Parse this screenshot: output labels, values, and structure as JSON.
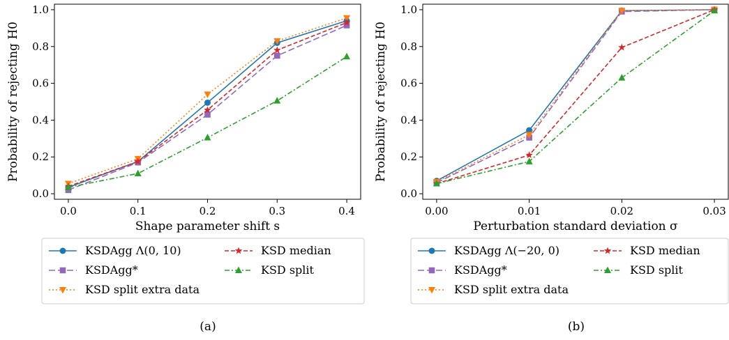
{
  "chart_data": [
    {
      "type": "line",
      "panel_label": "(a)",
      "xlabel": "Shape parameter shift s",
      "ylabel": "Probability of rejecting H0",
      "x": [
        0.0,
        0.1,
        0.2,
        0.3,
        0.4
      ],
      "x_tick_labels": [
        "0.0",
        "0.1",
        "0.2",
        "0.3",
        "0.4"
      ],
      "y_tick_labels": [
        "0.0",
        "0.2",
        "0.4",
        "0.6",
        "0.8",
        "1.0"
      ],
      "xlim": [
        -0.02,
        0.42
      ],
      "ylim": [
        -0.03,
        1.03
      ],
      "grid": false,
      "legend_position": "below",
      "series": [
        {
          "name": "KSDAgg Λ(0, 10)",
          "color": "#1f77b4",
          "marker": "circle",
          "dash": "solid",
          "values": [
            0.035,
            0.175,
            0.495,
            0.82,
            0.94
          ]
        },
        {
          "name": "KSDAgg*",
          "color": "#9467bd",
          "marker": "square",
          "dash": "longdash",
          "values": [
            0.02,
            0.17,
            0.43,
            0.75,
            0.915
          ]
        },
        {
          "name": "KSD split extra data",
          "color": "#ff7f0e",
          "marker": "triangle-down",
          "dash": "dotted",
          "values": [
            0.055,
            0.19,
            0.54,
            0.83,
            0.955
          ]
        },
        {
          "name": "KSD median",
          "color": "#d62728",
          "marker": "star",
          "dash": "dashed",
          "values": [
            0.04,
            0.175,
            0.455,
            0.78,
            0.93
          ]
        },
        {
          "name": "KSD split",
          "color": "#2ca02c",
          "marker": "triangle-up",
          "dash": "dashdot",
          "values": [
            0.035,
            0.11,
            0.305,
            0.505,
            0.745
          ]
        }
      ]
    },
    {
      "type": "line",
      "panel_label": "(b)",
      "xlabel": "Perturbation standard deviation σ",
      "ylabel": "Probability of rejecting H0",
      "x": [
        0.0,
        0.01,
        0.02,
        0.03
      ],
      "x_tick_labels": [
        "0.00",
        "0.01",
        "0.02",
        "0.03"
      ],
      "y_tick_labels": [
        "0.0",
        "0.2",
        "0.4",
        "0.6",
        "0.8",
        "1.0"
      ],
      "xlim": [
        -0.0015,
        0.0315
      ],
      "ylim": [
        -0.03,
        1.03
      ],
      "grid": false,
      "legend_position": "below",
      "series": [
        {
          "name": "KSDAgg Λ(−20, 0)",
          "color": "#1f77b4",
          "marker": "circle",
          "dash": "solid",
          "values": [
            0.07,
            0.345,
            0.995,
            1.0
          ]
        },
        {
          "name": "KSDAgg*",
          "color": "#9467bd",
          "marker": "square",
          "dash": "longdash",
          "values": [
            0.06,
            0.305,
            0.99,
            1.0
          ]
        },
        {
          "name": "KSD split extra data",
          "color": "#ff7f0e",
          "marker": "triangle-down",
          "dash": "dotted",
          "values": [
            0.065,
            0.32,
            0.995,
            1.0
          ]
        },
        {
          "name": "KSD median",
          "color": "#d62728",
          "marker": "star",
          "dash": "dashed",
          "values": [
            0.055,
            0.21,
            0.795,
            1.0
          ]
        },
        {
          "name": "KSD split",
          "color": "#2ca02c",
          "marker": "triangle-up",
          "dash": "dashdot",
          "values": [
            0.055,
            0.175,
            0.63,
            0.995
          ]
        }
      ]
    }
  ]
}
